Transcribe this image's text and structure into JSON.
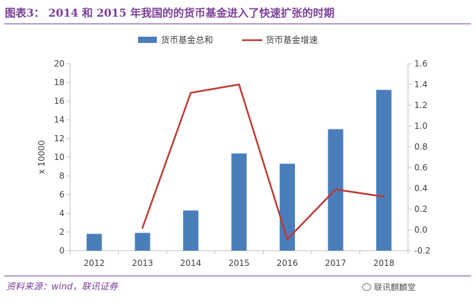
{
  "title": "图表3： 2014 和 2015 年我国的的货币基金进入了快速扩张的时期",
  "source": "资料来源：wind，联讯证券",
  "watermark": "联讯麒麟堂",
  "colors": {
    "bar": "#4a7ebb",
    "line": "#be3a34",
    "accent": "#7b3f9a"
  },
  "chart_data": {
    "type": "bar",
    "categories": [
      "2012",
      "2013",
      "2014",
      "2015",
      "2016",
      "2017",
      "2018"
    ],
    "series": [
      {
        "name": "货币基金总和",
        "type": "bar",
        "axis": "left",
        "values": [
          1.8,
          1.9,
          4.3,
          10.4,
          9.3,
          13.0,
          17.2
        ]
      },
      {
        "name": "货币基金增速",
        "type": "line",
        "axis": "right",
        "values": [
          null,
          0.02,
          1.32,
          1.4,
          -0.09,
          0.39,
          0.32
        ]
      }
    ],
    "ylabel": "x 10000",
    "ylim": [
      0,
      20
    ],
    "yticks": [
      "0",
      "2",
      "4",
      "6",
      "8",
      "10",
      "12",
      "14",
      "16",
      "18",
      "20"
    ],
    "y2lim": [
      -0.2,
      1.6
    ],
    "y2ticks": [
      "-0.2",
      "0.0",
      "0.2",
      "0.4",
      "0.6",
      "0.8",
      "1.0",
      "1.2",
      "1.4",
      "1.6"
    ],
    "legend_position": "top",
    "grid": false
  }
}
